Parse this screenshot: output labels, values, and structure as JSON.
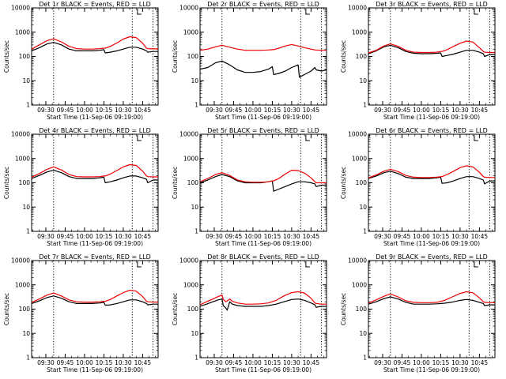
{
  "colors": {
    "events": "#000000",
    "lld": "#ee0000",
    "axes": "#000000",
    "background": "#ffffff"
  },
  "chart_data": [
    {
      "type": "line",
      "title": "Det 1r BLACK = Events, RED = LLD",
      "xlabel": "Start Time (11-Sep-06 09:19:00)",
      "ylabel": "Counts/sec",
      "yscale": "log",
      "ylim": [
        1,
        10000
      ],
      "yticks": [
        "1",
        "10",
        "100",
        "1000",
        "10000"
      ],
      "xlim": [
        "09:19",
        "10:57"
      ],
      "xticks": [
        "09:30",
        "09:45",
        "10:00",
        "10:15",
        "10:30",
        "10:45"
      ],
      "vlines": [
        "09:36",
        "10:37",
        "10:53"
      ],
      "flag": "10:41",
      "grid": false,
      "x": [
        "09:19",
        "09:25",
        "09:31",
        "09:36",
        "09:42",
        "09:48",
        "09:54",
        "10:00",
        "10:06",
        "10:12",
        "10:15",
        "10:16",
        "10:20",
        "10:25",
        "10:30",
        "10:35",
        "10:40",
        "10:45",
        "10:48",
        "10:49",
        "10:53",
        "10:57"
      ],
      "series": [
        {
          "name": "Events",
          "color": "#000000",
          "values": [
            170,
            230,
            330,
            380,
            300,
            200,
            170,
            170,
            170,
            180,
            190,
            140,
            150,
            170,
            200,
            240,
            240,
            200,
            170,
            150,
            160,
            160
          ]
        },
        {
          "name": "LLD",
          "color": "#ee0000",
          "values": [
            200,
            300,
            450,
            530,
            400,
            260,
            210,
            200,
            200,
            210,
            220,
            220,
            260,
            360,
            520,
            650,
            600,
            350,
            220,
            210,
            205,
            205
          ]
        }
      ]
    },
    {
      "type": "line",
      "title": "Det 2r BLACK = Events, RED = LLD",
      "xlabel": "Start Time (11-Sep-06 09:19:00)",
      "ylabel": "Counts/sec",
      "yscale": "log",
      "ylim": [
        1,
        10000
      ],
      "yticks": [
        "1",
        "10",
        "100",
        "1000",
        "10000"
      ],
      "xlim": [
        "09:19",
        "10:57"
      ],
      "xticks": [
        "09:30",
        "09:45",
        "10:00",
        "10:15",
        "10:30",
        "10:45"
      ],
      "vlines": [
        "09:36",
        "10:37",
        "10:53"
      ],
      "flag": "10:41",
      "grid": false,
      "x": [
        "09:19",
        "09:25",
        "09:31",
        "09:36",
        "09:42",
        "09:48",
        "09:54",
        "10:00",
        "10:06",
        "10:12",
        "10:15",
        "10:16",
        "10:20",
        "10:25",
        "10:30",
        "10:35",
        "10:36",
        "10:40",
        "10:45",
        "10:48",
        "10:49",
        "10:53",
        "10:57"
      ],
      "series": [
        {
          "name": "Events",
          "color": "#000000",
          "values": [
            30,
            35,
            55,
            65,
            45,
            28,
            22,
            22,
            24,
            30,
            38,
            18,
            20,
            25,
            35,
            45,
            14,
            18,
            25,
            35,
            28,
            25,
            28
          ]
        },
        {
          "name": "LLD",
          "color": "#ee0000",
          "values": [
            180,
            200,
            250,
            290,
            240,
            200,
            180,
            180,
            180,
            185,
            190,
            190,
            220,
            270,
            310,
            270,
            260,
            230,
            200,
            185,
            185,
            180,
            180
          ]
        }
      ]
    },
    {
      "type": "line",
      "title": "Det 3r BLACK = Events, RED = LLD",
      "xlabel": "Start Time (11-Sep-06 09:19:00)",
      "ylabel": "Counts/sec",
      "yscale": "log",
      "ylim": [
        1,
        10000
      ],
      "yticks": [
        "1",
        "10",
        "100",
        "1000",
        "10000"
      ],
      "xlim": [
        "09:19",
        "10:57"
      ],
      "xticks": [
        "09:30",
        "09:45",
        "10:00",
        "10:15",
        "10:30",
        "10:45"
      ],
      "vlines": [
        "09:36",
        "10:37",
        "10:53"
      ],
      "flag": "10:41",
      "grid": false,
      "x": [
        "09:19",
        "09:25",
        "09:31",
        "09:36",
        "09:42",
        "09:48",
        "09:54",
        "10:00",
        "10:06",
        "10:12",
        "10:15",
        "10:16",
        "10:20",
        "10:25",
        "10:30",
        "10:35",
        "10:40",
        "10:45",
        "10:48",
        "10:49",
        "10:53",
        "10:57"
      ],
      "series": [
        {
          "name": "Events",
          "color": "#000000",
          "values": [
            130,
            170,
            250,
            290,
            230,
            160,
            135,
            130,
            130,
            135,
            140,
            100,
            110,
            125,
            150,
            180,
            180,
            150,
            130,
            100,
            120,
            120
          ]
        },
        {
          "name": "LLD",
          "color": "#ee0000",
          "values": [
            140,
            180,
            270,
            330,
            260,
            180,
            150,
            145,
            145,
            150,
            160,
            160,
            190,
            260,
            350,
            430,
            390,
            230,
            160,
            150,
            145,
            145
          ]
        }
      ]
    },
    {
      "type": "line",
      "title": "Det 4r BLACK = Events, RED = LLD",
      "xlabel": "Start Time (11-Sep-06 09:19:00)",
      "ylabel": "Counts/sec",
      "yscale": "log",
      "ylim": [
        1,
        10000
      ],
      "yticks": [
        "1",
        "10",
        "100",
        "1000",
        "10000"
      ],
      "xlim": [
        "09:19",
        "10:57"
      ],
      "xticks": [
        "09:30",
        "09:45",
        "10:00",
        "10:15",
        "10:30",
        "10:45"
      ],
      "vlines": [
        "09:36",
        "10:37",
        "10:53"
      ],
      "flag": "10:41",
      "grid": false,
      "x": [
        "09:19",
        "09:25",
        "09:31",
        "09:36",
        "09:42",
        "09:48",
        "09:54",
        "10:00",
        "10:06",
        "10:12",
        "10:15",
        "10:16",
        "10:20",
        "10:25",
        "10:30",
        "10:35",
        "10:40",
        "10:45",
        "10:48",
        "10:49",
        "10:53",
        "10:57"
      ],
      "series": [
        {
          "name": "Events",
          "color": "#000000",
          "values": [
            150,
            200,
            280,
            330,
            260,
            180,
            150,
            150,
            150,
            160,
            170,
            100,
            110,
            130,
            160,
            190,
            190,
            160,
            140,
            100,
            130,
            130
          ]
        },
        {
          "name": "LLD",
          "color": "#ee0000",
          "values": [
            170,
            240,
            360,
            450,
            340,
            220,
            180,
            175,
            175,
            180,
            190,
            190,
            230,
            320,
            450,
            560,
            520,
            300,
            190,
            180,
            175,
            175
          ]
        }
      ]
    },
    {
      "type": "line",
      "title": "Det 5r BLACK = Events, RED = LLD",
      "xlabel": "Start Time (11-Sep-06 09:19:00)",
      "ylabel": "Counts/sec",
      "yscale": "log",
      "ylim": [
        1,
        10000
      ],
      "yticks": [
        "1",
        "10",
        "100",
        "1000",
        "10000"
      ],
      "xlim": [
        "09:19",
        "10:57"
      ],
      "xticks": [
        "09:30",
        "09:45",
        "10:00",
        "10:15",
        "10:30",
        "10:45"
      ],
      "vlines": [
        "09:36",
        "10:37",
        "10:53"
      ],
      "flag": "10:41",
      "grid": false,
      "x": [
        "09:19",
        "09:25",
        "09:31",
        "09:36",
        "09:42",
        "09:48",
        "09:54",
        "10:00",
        "10:06",
        "10:12",
        "10:15",
        "10:16",
        "10:20",
        "10:25",
        "10:30",
        "10:35",
        "10:40",
        "10:45",
        "10:48",
        "10:49",
        "10:53",
        "10:57"
      ],
      "series": [
        {
          "name": "Events",
          "color": "#000000",
          "values": [
            100,
            130,
            180,
            220,
            180,
            120,
            100,
            100,
            100,
            110,
            120,
            45,
            55,
            70,
            90,
            110,
            110,
            100,
            90,
            70,
            80,
            80
          ]
        },
        {
          "name": "LLD",
          "color": "#ee0000",
          "values": [
            110,
            150,
            220,
            260,
            200,
            130,
            110,
            105,
            105,
            110,
            120,
            120,
            150,
            230,
            330,
            320,
            250,
            160,
            110,
            100,
            100,
            100
          ]
        }
      ]
    },
    {
      "type": "line",
      "title": "Det 6r BLACK = Events, RED = LLD",
      "xlabel": "Start Time (11-Sep-06 09:19:00)",
      "ylabel": "Counts/sec",
      "yscale": "log",
      "ylim": [
        1,
        10000
      ],
      "yticks": [
        "1",
        "10",
        "100",
        "1000",
        "10000"
      ],
      "xlim": [
        "09:19",
        "10:57"
      ],
      "xticks": [
        "09:30",
        "09:45",
        "10:00",
        "10:15",
        "10:30",
        "10:45"
      ],
      "vlines": [
        "09:36",
        "10:37",
        "10:53"
      ],
      "flag": "10:41",
      "grid": false,
      "x": [
        "09:19",
        "09:25",
        "09:31",
        "09:36",
        "09:42",
        "09:48",
        "09:54",
        "10:00",
        "10:06",
        "10:12",
        "10:15",
        "10:16",
        "10:20",
        "10:25",
        "10:30",
        "10:35",
        "10:40",
        "10:45",
        "10:48",
        "10:49",
        "10:53",
        "10:57"
      ],
      "series": [
        {
          "name": "Events",
          "color": "#000000",
          "values": [
            150,
            190,
            260,
            300,
            240,
            170,
            150,
            150,
            150,
            160,
            170,
            95,
            100,
            120,
            150,
            180,
            180,
            150,
            130,
            90,
            120,
            120
          ]
        },
        {
          "name": "LLD",
          "color": "#ee0000",
          "values": [
            160,
            210,
            300,
            360,
            290,
            200,
            170,
            165,
            165,
            170,
            180,
            180,
            220,
            300,
            420,
            500,
            450,
            270,
            180,
            170,
            165,
            165
          ]
        }
      ]
    },
    {
      "type": "line",
      "title": "Det 7r BLACK = Events, RED = LLD",
      "xlabel": "Start Time (11-Sep-06 09:19:00)",
      "ylabel": "Counts/sec",
      "yscale": "log",
      "ylim": [
        1,
        10000
      ],
      "yticks": [
        "1",
        "10",
        "100",
        "1000",
        "10000"
      ],
      "xlim": [
        "09:19",
        "10:57"
      ],
      "xticks": [
        "09:30",
        "09:45",
        "10:00",
        "10:15",
        "10:30",
        "10:45"
      ],
      "vlines": [
        "09:36",
        "10:37",
        "10:53"
      ],
      "flag": "10:41",
      "grid": false,
      "x": [
        "09:19",
        "09:25",
        "09:31",
        "09:36",
        "09:42",
        "09:48",
        "09:54",
        "10:00",
        "10:06",
        "10:12",
        "10:15",
        "10:16",
        "10:20",
        "10:25",
        "10:30",
        "10:35",
        "10:40",
        "10:45",
        "10:48",
        "10:49",
        "10:53",
        "10:57"
      ],
      "series": [
        {
          "name": "Events",
          "color": "#000000",
          "values": [
            170,
            220,
            300,
            350,
            280,
            200,
            170,
            170,
            170,
            180,
            190,
            145,
            150,
            170,
            200,
            240,
            240,
            200,
            170,
            150,
            160,
            160
          ]
        },
        {
          "name": "LLD",
          "color": "#ee0000",
          "values": [
            190,
            260,
            380,
            460,
            350,
            240,
            200,
            195,
            195,
            200,
            210,
            210,
            250,
            350,
            480,
            600,
            550,
            330,
            210,
            200,
            195,
            195
          ]
        }
      ]
    },
    {
      "type": "line",
      "title": "Det 8r BLACK = Events, RED = LLD",
      "xlabel": "Start Time (11-Sep-06 09:19:00)",
      "ylabel": "Counts/sec",
      "yscale": "log",
      "ylim": [
        1,
        10000
      ],
      "yticks": [
        "1",
        "10",
        "100",
        "1000",
        "10000"
      ],
      "xlim": [
        "09:19",
        "10:57"
      ],
      "xticks": [
        "09:30",
        "09:45",
        "10:00",
        "10:15",
        "10:30",
        "10:45"
      ],
      "vlines": [
        "09:36",
        "10:37",
        "10:53"
      ],
      "flag": "10:41",
      "grid": false,
      "x": [
        "09:19",
        "09:24",
        "09:29",
        "09:33",
        "09:36",
        "09:37",
        "09:39",
        "09:40",
        "09:42",
        "09:44",
        "09:48",
        "09:54",
        "10:00",
        "10:06",
        "10:12",
        "10:18",
        "10:24",
        "10:30",
        "10:35",
        "10:40",
        "10:45",
        "10:48",
        "10:49",
        "10:53",
        "10:57"
      ],
      "series": [
        {
          "name": "Events",
          "color": "#000000",
          "values": [
            130,
            160,
            200,
            240,
            260,
            140,
            110,
            90,
            200,
            160,
            140,
            130,
            130,
            130,
            140,
            160,
            200,
            250,
            260,
            230,
            180,
            150,
            120,
            130,
            130
          ]
        },
        {
          "name": "LLD",
          "color": "#ee0000",
          "values": [
            150,
            200,
            260,
            330,
            380,
            250,
            200,
            220,
            260,
            210,
            180,
            160,
            160,
            165,
            180,
            230,
            350,
            480,
            520,
            460,
            280,
            180,
            170,
            160,
            160
          ]
        }
      ]
    },
    {
      "type": "line",
      "title": "Det 9r BLACK = Events, RED = LLD",
      "xlabel": "Start Time (11-Sep-06 09:19:00)",
      "ylabel": "Counts/sec",
      "yscale": "log",
      "ylim": [
        1,
        10000
      ],
      "yticks": [
        "1",
        "10",
        "100",
        "1000",
        "10000"
      ],
      "xlim": [
        "09:19",
        "10:57"
      ],
      "xticks": [
        "09:30",
        "09:45",
        "10:00",
        "10:15",
        "10:30",
        "10:45"
      ],
      "vlines": [
        "09:36",
        "10:37",
        "10:53"
      ],
      "flag": "10:41",
      "grid": false,
      "x": [
        "09:19",
        "09:25",
        "09:31",
        "09:36",
        "09:42",
        "09:48",
        "09:54",
        "10:00",
        "10:06",
        "10:12",
        "10:18",
        "10:24",
        "10:30",
        "10:35",
        "10:40",
        "10:45",
        "10:48",
        "10:49",
        "10:53",
        "10:57"
      ],
      "series": [
        {
          "name": "Events",
          "color": "#000000",
          "values": [
            160,
            200,
            270,
            320,
            260,
            190,
            160,
            160,
            160,
            165,
            175,
            195,
            230,
            250,
            230,
            190,
            170,
            140,
            150,
            150
          ]
        },
        {
          "name": "LLD",
          "color": "#ee0000",
          "values": [
            180,
            240,
            340,
            420,
            320,
            220,
            190,
            185,
            185,
            190,
            230,
            320,
            440,
            520,
            470,
            290,
            200,
            190,
            185,
            185
          ]
        }
      ]
    }
  ]
}
